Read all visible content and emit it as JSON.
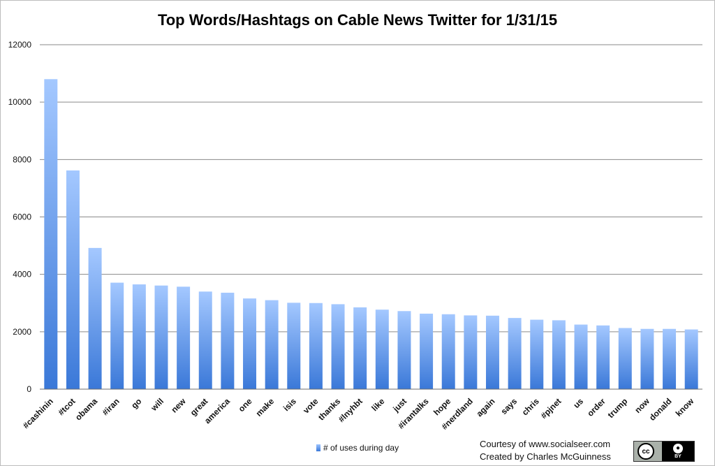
{
  "chart_data": {
    "type": "bar",
    "title": "Top Words/Hashtags on Cable News Twitter for 1/31/15",
    "xlabel": "",
    "ylabel": "",
    "ylim": [
      0,
      12000
    ],
    "yticks": [
      0,
      2000,
      4000,
      6000,
      8000,
      10000,
      12000
    ],
    "grid": true,
    "legend_position": "bottom",
    "categories": [
      "#cashinin",
      "#tcot",
      "obama",
      "#iran",
      "go",
      "will",
      "new",
      "great",
      "america",
      "one",
      "make",
      "isis",
      "vote",
      "thanks",
      "#lnyhbt",
      "like",
      "just",
      "#irantalks",
      "hope",
      "#nerdland",
      "again",
      "says",
      "chris",
      "#pjnet",
      "us",
      "order",
      "trump",
      "now",
      "donald",
      "know"
    ],
    "series": [
      {
        "name": "# of uses during day",
        "values": [
          10800,
          7620,
          4920,
          3710,
          3650,
          3610,
          3570,
          3400,
          3360,
          3160,
          3100,
          3010,
          3000,
          2960,
          2850,
          2770,
          2720,
          2630,
          2610,
          2570,
          2560,
          2480,
          2420,
          2400,
          2250,
          2220,
          2130,
          2100,
          2100,
          2080
        ]
      }
    ],
    "bar_color": "#3d7bd9"
  },
  "credits": {
    "line1": "Courtesy of www.socialseer.com",
    "line2": "Created by Charles McGuinness"
  },
  "badge": {
    "cc_text": "cc",
    "by_text": "BY"
  }
}
